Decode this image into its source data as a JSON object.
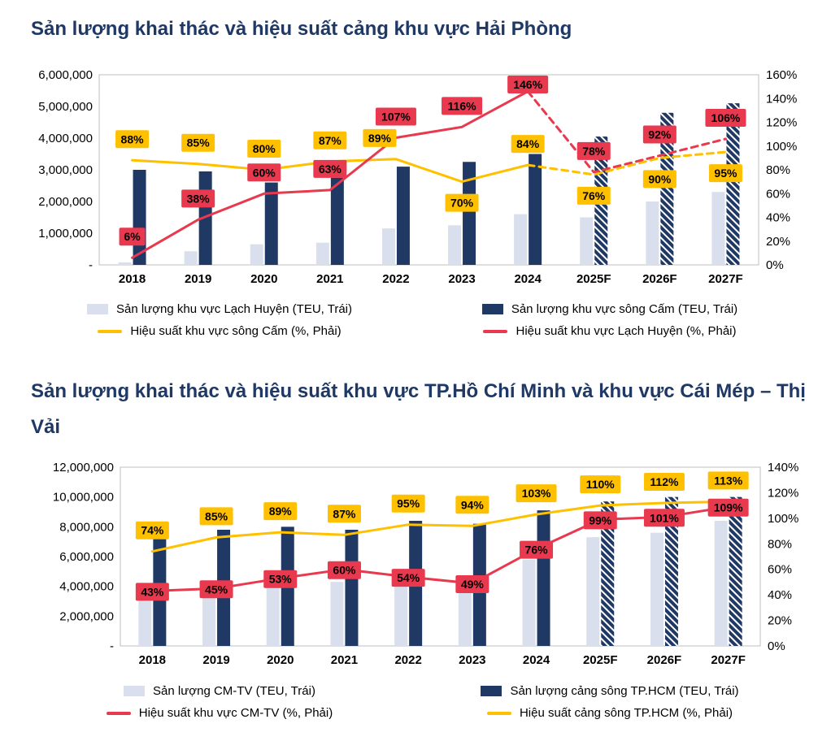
{
  "colors": {
    "navy": "#1F3864",
    "light_blue": "#D9DFEC",
    "yellow": "#FFC000",
    "red": "#E8394F",
    "title": "#1F3864",
    "plot_border": "#BFBFBF",
    "label_text": "#000000"
  },
  "chart_data": [
    {
      "id": "haiphong",
      "type": "bar",
      "subtype": "column-line-combo",
      "title": "Sản lượng khai thác và hiệu suất cảng khu vực Hải Phòng",
      "categories": [
        "2018",
        "2019",
        "2020",
        "2021",
        "2022",
        "2023",
        "2024",
        "2025F",
        "2026F",
        "2027F"
      ],
      "forecast_from_index": 7,
      "left_axis": {
        "min": 0,
        "max": 6000000,
        "step": 1000000,
        "zero_label": "-"
      },
      "right_axis": {
        "min": 0,
        "max": 160,
        "step": 20,
        "suffix": "%"
      },
      "bar_series": [
        {
          "name": "Sản lượng khu vực Lạch Huyện (TEU, Trái)",
          "color_key": "light_blue",
          "axis": "left",
          "values": [
            80000,
            430000,
            650000,
            700000,
            1150000,
            1250000,
            1600000,
            1500000,
            2000000,
            2300000
          ]
        },
        {
          "name": "Sản lượng khu vực sông Cấm (TEU, Trái)",
          "color_key": "navy",
          "axis": "left",
          "hatch_forecast": true,
          "values": [
            3000000,
            2950000,
            2600000,
            2750000,
            3100000,
            3250000,
            3500000,
            4050000,
            4800000,
            5100000
          ]
        }
      ],
      "line_series": [
        {
          "name": "Hiệu suất khu vực sông Cấm (%, Phải)",
          "color_key": "yellow",
          "axis": "right",
          "dashed_forecast": true,
          "values": [
            88,
            85,
            80,
            87,
            89,
            70,
            84,
            76,
            90,
            95
          ],
          "label_sides": [
            "above",
            "above",
            "above",
            "above",
            "above",
            "below",
            "above",
            "below",
            "below",
            "below"
          ],
          "label_dx": [
            0,
            0,
            0,
            0,
            -20,
            0,
            0,
            0,
            0,
            0
          ]
        },
        {
          "name": "Hiệu suất khu vực Lạch Huyện (%, Phải)",
          "color_key": "red",
          "axis": "right",
          "dashed_forecast": true,
          "values": [
            6,
            38,
            60,
            63,
            107,
            116,
            146,
            78,
            92,
            106
          ],
          "label_sides": [
            "above",
            "above",
            "above",
            "above",
            "above",
            "above",
            "above",
            "above",
            "above",
            "above"
          ]
        }
      ],
      "legend_rows": [
        [
          "bar.0",
          "bar.1"
        ],
        [
          "line.0",
          "line.1"
        ]
      ]
    },
    {
      "id": "hcm-cmtv",
      "type": "bar",
      "subtype": "column-line-combo",
      "title": "Sản lượng khai thác và hiệu suất khu vực TP.Hồ Chí Minh và khu vực Cái Mép – Thị Vải",
      "categories": [
        "2018",
        "2019",
        "2020",
        "2021",
        "2022",
        "2023",
        "2024",
        "2025F",
        "2026F",
        "2027F"
      ],
      "forecast_from_index": 7,
      "left_axis": {
        "min": 0,
        "max": 12000000,
        "step": 2000000,
        "zero_label": "-"
      },
      "right_axis": {
        "min": 0,
        "max": 140,
        "step": 20,
        "suffix": "%"
      },
      "bar_series": [
        {
          "name": "Sản lượng CM-TV (TEU, Trái)",
          "color_key": "light_blue",
          "axis": "left",
          "values": [
            3600000,
            3700000,
            3900000,
            4300000,
            4200000,
            3900000,
            5800000,
            7300000,
            7600000,
            8400000
          ]
        },
        {
          "name": "Sản lượng cảng sông TP.HCM (TEU, Trái)",
          "color_key": "navy",
          "axis": "left",
          "hatch_forecast": true,
          "values": [
            7500000,
            7800000,
            8000000,
            7800000,
            8400000,
            8200000,
            9100000,
            9700000,
            10000000,
            10000000
          ]
        }
      ],
      "line_series": [
        {
          "name": "Hiệu suất khu vực CM-TV (%, Phải)",
          "color_key": "red",
          "axis": "right",
          "dashed_forecast": false,
          "values": [
            43,
            45,
            53,
            60,
            54,
            49,
            76,
            99,
            101,
            109
          ],
          "label_sides": [
            "on",
            "on",
            "on",
            "on",
            "on",
            "on",
            "on",
            "on",
            "on",
            "on"
          ]
        },
        {
          "name": "Hiệu suất cảng sông TP.HCM (%, Phải)",
          "color_key": "yellow",
          "axis": "right",
          "dashed_forecast": false,
          "values": [
            74,
            85,
            89,
            87,
            95,
            94,
            103,
            110,
            112,
            113
          ],
          "label_sides": [
            "above",
            "above",
            "above",
            "above",
            "above",
            "above",
            "above",
            "above",
            "above",
            "above"
          ]
        }
      ],
      "legend_rows": [
        [
          "bar.0",
          "bar.1"
        ],
        [
          "line.0",
          "line.1"
        ]
      ]
    }
  ]
}
